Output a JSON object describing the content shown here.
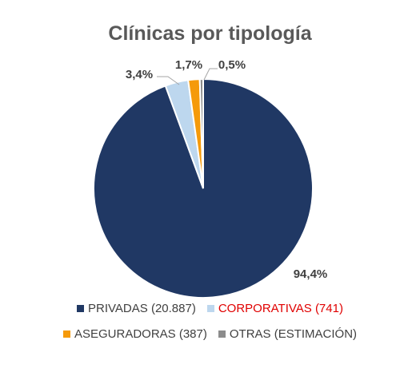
{
  "chart_data": {
    "type": "pie",
    "title": "Clínicas por tipología",
    "slices": [
      {
        "label": "PRIVADAS (20.887)",
        "value": 94.4,
        "value_label": "94,4%",
        "color": "#203864",
        "legend_text_color": "#404040"
      },
      {
        "label": "CORPORATIVAS (741)",
        "value": 3.4,
        "value_label": "3,4%",
        "color": "#BDD7EE",
        "legend_text_color": "#E00000"
      },
      {
        "label": "ASEGURADORAS (387)",
        "value": 1.7,
        "value_label": "1,7%",
        "color": "#F59A0A",
        "legend_text_color": "#404040"
      },
      {
        "label": "OTRAS (ESTIMACIÓN)",
        "value": 0.5,
        "value_label": "0,5%",
        "color": "#8C8C8C",
        "legend_text_color": "#404040"
      }
    ],
    "legend_position": "bottom"
  }
}
